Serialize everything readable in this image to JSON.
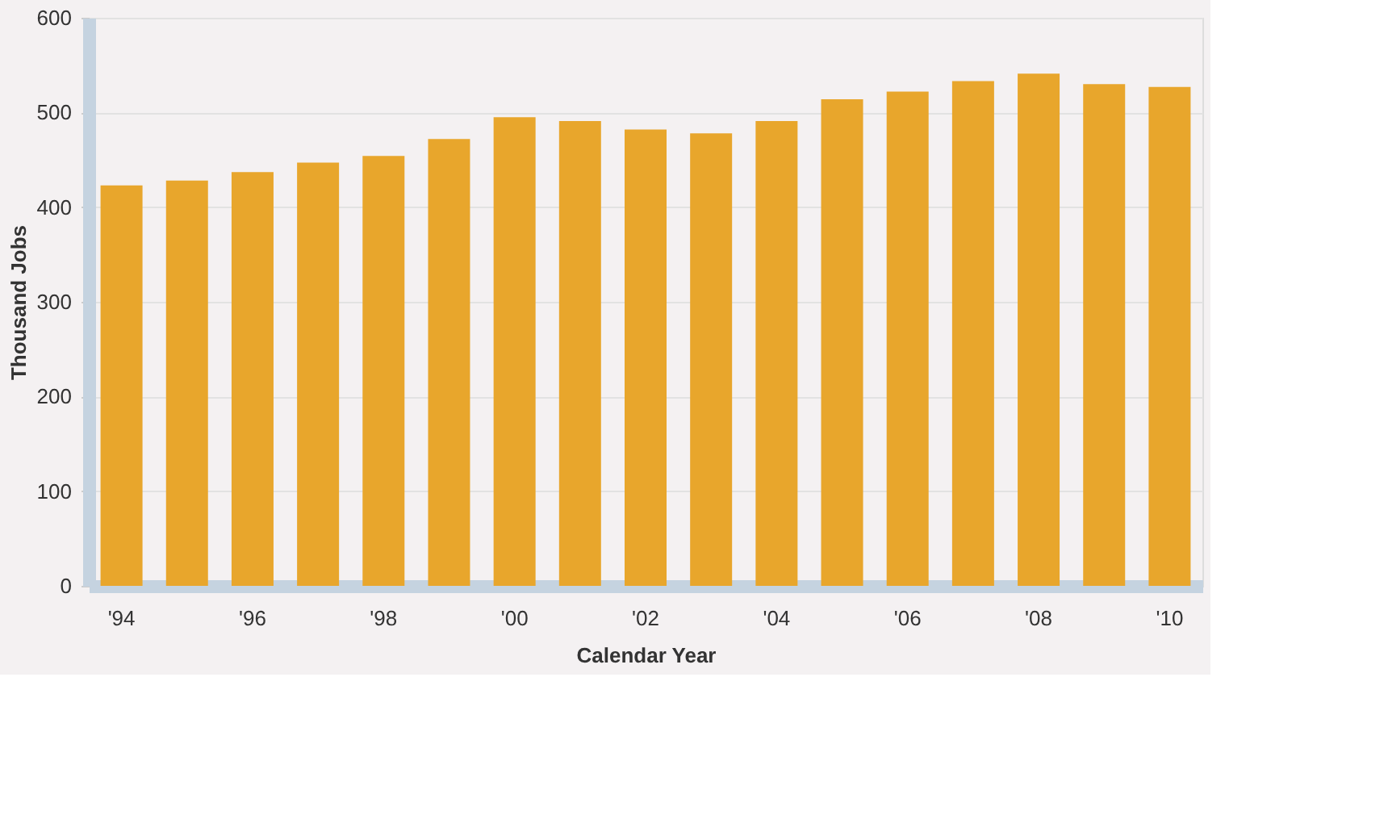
{
  "chart_data": {
    "type": "bar",
    "xlabel": "Calendar Year",
    "ylabel": "Thousand Jobs",
    "categories": [
      "'94",
      null,
      "'96",
      null,
      "'98",
      null,
      "'00",
      null,
      "'02",
      null,
      "'04",
      null,
      "'06",
      null,
      "'08",
      null,
      "'10"
    ],
    "values": [
      423,
      428,
      437,
      447,
      454,
      472,
      495,
      491,
      482,
      478,
      491,
      514,
      522,
      533,
      541,
      530,
      527
    ],
    "color": "#e8a62c",
    "ylim": [
      0,
      600
    ],
    "yticks": [
      0,
      100,
      200,
      300,
      400,
      500,
      600
    ],
    "grid": "y"
  }
}
